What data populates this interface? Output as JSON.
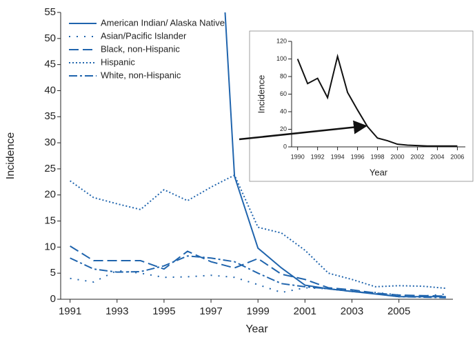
{
  "chart_data": [
    {
      "type": "line",
      "x": [
        1991,
        1992,
        1993,
        1994,
        1995,
        1996,
        1997,
        1998,
        1999,
        2000,
        2001,
        2002,
        2003,
        2004,
        2005,
        2006,
        2007
      ],
      "xlim": [
        1990.6,
        2007.3
      ],
      "xticks": [
        1991,
        1993,
        1995,
        1997,
        1999,
        2001,
        2003,
        2005
      ],
      "ylim": [
        0,
        55
      ],
      "yticks": [
        0,
        5,
        10,
        15,
        20,
        25,
        30,
        35,
        40,
        45,
        50,
        55
      ],
      "x_label": "Year",
      "y_label": "Incidence",
      "legend": "top-left",
      "series": [
        {
          "name": "American Indian/ Alaska Native",
          "color": "#1f64ad",
          "dash": "none",
          "values": [
            null,
            null,
            null,
            null,
            null,
            null,
            102,
            23.6,
            9.8,
            6,
            2.7,
            2,
            1.5,
            1,
            0.5,
            0.5,
            0.5
          ]
        },
        {
          "name": "Asian/Pacific Islander",
          "color": "#1f64ad",
          "dash": "2,9",
          "values": [
            4,
            3.3,
            5.5,
            5,
            4.2,
            4.3,
            4.6,
            4.2,
            2.8,
            1.3,
            2.2,
            2,
            1.5,
            1.3,
            0.8,
            0.6,
            1
          ]
        },
        {
          "name": "Black, non-Hispanic",
          "color": "#1f64ad",
          "dash": "14,6",
          "values": [
            10.2,
            7.4,
            7.4,
            7.4,
            5.8,
            9.2,
            7.2,
            6,
            7.8,
            4.8,
            3.8,
            2.2,
            1.8,
            1.2,
            0.8,
            0.7,
            0.6
          ]
        },
        {
          "name": "Hispanic",
          "color": "#1f64ad",
          "dash": "2,3",
          "values": [
            22.7,
            19.5,
            18.3,
            17.2,
            21,
            18.9,
            21.5,
            23.8,
            13.8,
            12.7,
            9.4,
            5,
            3.8,
            2.4,
            2.6,
            2.5,
            2.1
          ]
        },
        {
          "name": "White, non-Hispanic",
          "color": "#1f64ad",
          "dash": "12,4,3,4",
          "values": [
            7.9,
            5.8,
            5.2,
            5.3,
            6.4,
            8.3,
            7.9,
            7.2,
            5,
            3,
            2.4,
            2,
            1.5,
            1.1,
            0.5,
            0.4,
            0.3
          ]
        }
      ]
    },
    {
      "type": "line",
      "x": [
        1990,
        1991,
        1992,
        1993,
        1994,
        1995,
        1996,
        1997,
        1998,
        1999,
        2000,
        2001,
        2002,
        2003,
        2004,
        2005,
        2006
      ],
      "xlim": [
        1989.4,
        2006.8
      ],
      "xticks": [
        1990,
        1992,
        1994,
        1996,
        1998,
        2000,
        2002,
        2004,
        2006
      ],
      "ylim": [
        0,
        120
      ],
      "yticks": [
        0,
        20,
        40,
        60,
        80,
        100,
        120
      ],
      "x_label": "Year",
      "y_label": "Incidence",
      "color": "#111",
      "values": [
        100,
        72,
        78,
        56,
        103,
        62,
        42,
        23,
        10,
        7,
        3,
        2,
        1.5,
        1,
        1,
        1,
        1
      ]
    }
  ]
}
